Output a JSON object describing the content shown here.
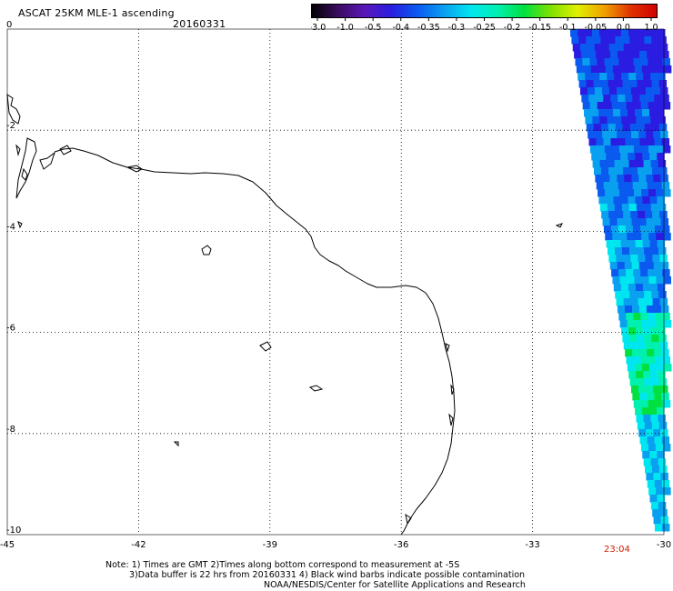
{
  "header": {
    "title": "ASCAT 25KM MLE-1 ascending",
    "date": "20160331"
  },
  "colorbar": {
    "tick_labels": [
      "-3.0",
      "-1.0",
      "-0.5",
      "-0.4",
      "-0.35",
      "-0.3",
      "-0.25",
      "-0.2",
      "-0.15",
      "-0.1",
      "-0.05",
      "0.0",
      "1.0"
    ],
    "colors": [
      "#000000",
      "#3a0c5e",
      "#5a18b8",
      "#2a1ce0",
      "#0a5af0",
      "#0aa0f0",
      "#00e6f0",
      "#00f0b0",
      "#00e040",
      "#80e000",
      "#e0f000",
      "#f0a000",
      "#e03000",
      "#d00000"
    ]
  },
  "map": {
    "x_tick_labels": [
      "-45",
      "-42",
      "-39",
      "-36",
      "-33",
      "-30"
    ],
    "y_tick_labels": [
      "0",
      "-2",
      "-4",
      "-6",
      "-8",
      "-10"
    ],
    "lon_range": [
      -45,
      -30
    ],
    "lat_range": [
      -10,
      0
    ],
    "land_color": "#ffffff",
    "coastline_color": "#000000",
    "grid": "dotted"
  },
  "swath_time": "23:04",
  "notes": [
    "Note: 1) Times are GMT 2)Times along bottom correspond to measurement at -5S",
    "3)Data buffer is 22 hrs from 20160331 4) Black wind barbs indicate possible contamination",
    "NOAA/NESDIS/Center for Satellite Applications and Research"
  ]
}
